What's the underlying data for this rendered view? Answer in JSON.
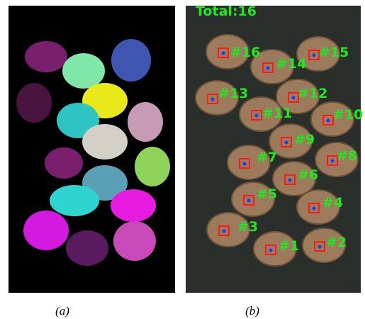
{
  "panels": [
    {
      "caption": "(a)"
    },
    {
      "caption": "(b)",
      "overlay_title": "Total:16",
      "labels": [
        "#1",
        "#2",
        "#3",
        "#4",
        "#5",
        "#6",
        "#7",
        "#8",
        "#9",
        "#10",
        "#11",
        "#12",
        "#13",
        "#14",
        "#15",
        "#16"
      ]
    }
  ]
}
